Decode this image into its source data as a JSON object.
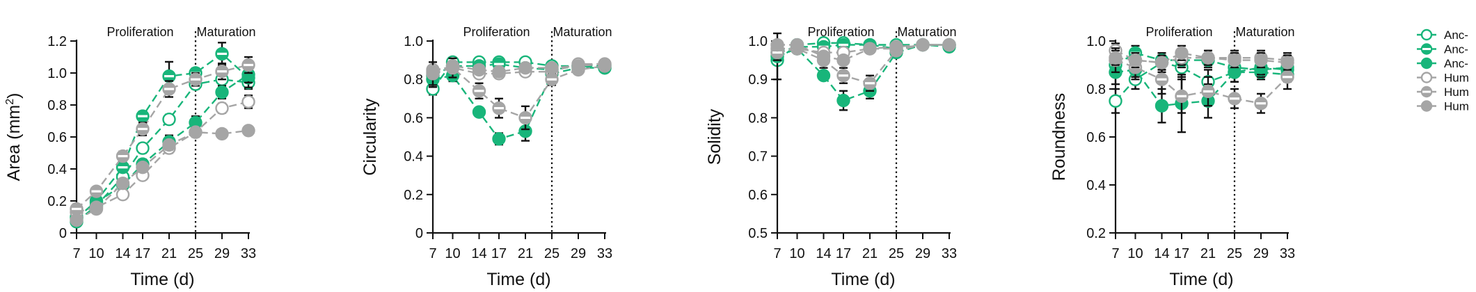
{
  "colors": {
    "green": "#18b57a",
    "gray": "#a5a5a5",
    "axis": "#111111",
    "errorbar": "#111111"
  },
  "legend": {
    "placement": "right",
    "entries": [
      {
        "label": "Anc-",
        "color": "#18b57a",
        "marker": "open"
      },
      {
        "label": "Anc-",
        "color": "#18b57a",
        "marker": "half"
      },
      {
        "label": "Anc-",
        "color": "#18b57a",
        "marker": "filled"
      },
      {
        "label": "Hum",
        "color": "#a5a5a5",
        "marker": "open"
      },
      {
        "label": "Hum",
        "color": "#a5a5a5",
        "marker": "half"
      },
      {
        "label": "Hum",
        "color": "#a5a5a5",
        "marker": "filled"
      }
    ]
  },
  "chart_data": [
    {
      "type": "line",
      "ylabel": "Area (mm",
      "ylabel_sup": "2",
      "ylabel_suffix": ")",
      "xlabel": "Time (d)",
      "x": [
        7,
        10,
        14,
        17,
        21,
        25,
        29,
        33
      ],
      "xticks": [
        "7",
        "10",
        "14",
        "17",
        "21",
        "25",
        "29",
        "33"
      ],
      "ylim": [
        0,
        1.2
      ],
      "yticks": [
        "0",
        "0.2",
        "0.4",
        "0.6",
        "0.8",
        "1.0",
        "1.2"
      ],
      "ytick_values": [
        0,
        0.2,
        0.4,
        0.6,
        0.8,
        1.0,
        1.2
      ],
      "phase_divider_x": 25,
      "phase_labels": {
        "left": "Proliferation",
        "right": "Maturation"
      },
      "series": [
        {
          "color": "#18b57a",
          "marker": "open",
          "values": [
            0.07,
            0.17,
            0.35,
            0.53,
            0.71,
            0.93,
            0.96,
            0.94
          ],
          "err": [
            0.01,
            0.01,
            0.02,
            0.03,
            0.03,
            0.03,
            0.04,
            0.04
          ]
        },
        {
          "color": "#18b57a",
          "marker": "half",
          "values": [
            0.09,
            0.2,
            0.41,
            0.73,
            0.98,
            1.0,
            1.12,
            0.97
          ],
          "err": [
            0.01,
            0.02,
            0.02,
            0.03,
            0.09,
            0.03,
            0.07,
            0.06
          ]
        },
        {
          "color": "#18b57a",
          "marker": "filled",
          "values": [
            0.1,
            0.19,
            0.3,
            0.43,
            0.57,
            0.69,
            0.88,
            0.99
          ],
          "err": [
            0.01,
            0.01,
            0.02,
            0.03,
            0.04,
            0.04,
            0.04,
            0.05
          ]
        },
        {
          "color": "#a5a5a5",
          "marker": "open",
          "values": [
            0.13,
            0.16,
            0.24,
            0.36,
            0.53,
            0.63,
            0.78,
            0.82
          ],
          "err": [
            0.01,
            0.01,
            0.02,
            0.02,
            0.03,
            0.03,
            0.03,
            0.04
          ]
        },
        {
          "color": "#a5a5a5",
          "marker": "half",
          "values": [
            0.15,
            0.26,
            0.48,
            0.65,
            0.9,
            0.96,
            1.01,
            1.05
          ],
          "err": [
            0.02,
            0.02,
            0.03,
            0.04,
            0.05,
            0.04,
            0.05,
            0.05
          ]
        },
        {
          "color": "#a5a5a5",
          "marker": "filled",
          "values": [
            0.08,
            0.15,
            0.31,
            0.41,
            0.55,
            0.63,
            0.62,
            0.64
          ],
          "err": [
            0.01,
            0.01,
            0.02,
            0.02,
            0.03,
            0.02,
            0.02,
            0.02
          ]
        }
      ]
    },
    {
      "type": "line",
      "ylabel": "Circularity",
      "xlabel": "Time (d)",
      "x": [
        7,
        10,
        14,
        17,
        21,
        25,
        29,
        33
      ],
      "xticks": [
        "7",
        "10",
        "14",
        "17",
        "21",
        "25",
        "29",
        "33"
      ],
      "ylim": [
        0,
        1.0
      ],
      "yticks": [
        "0",
        "0.2",
        "0.4",
        "0.6",
        "0.8",
        "1.0"
      ],
      "ytick_values": [
        0,
        0.2,
        0.4,
        0.6,
        0.8,
        1.0
      ],
      "phase_divider_x": 25,
      "phase_labels": {
        "left": "Proliferation",
        "right": "Maturation"
      },
      "series": [
        {
          "color": "#18b57a",
          "marker": "open",
          "values": [
            0.75,
            0.89,
            0.89,
            0.89,
            0.89,
            0.87,
            0.87,
            0.87
          ],
          "err": [
            0.03,
            0.02,
            0.02,
            0.02,
            0.02,
            0.02,
            0.02,
            0.02
          ]
        },
        {
          "color": "#18b57a",
          "marker": "half",
          "values": [
            0.82,
            0.87,
            0.87,
            0.88,
            0.86,
            0.85,
            0.87,
            0.86
          ],
          "err": [
            0.03,
            0.02,
            0.02,
            0.02,
            0.02,
            0.02,
            0.02,
            0.02
          ]
        },
        {
          "color": "#18b57a",
          "marker": "filled",
          "values": [
            0.8,
            0.82,
            0.63,
            0.49,
            0.53,
            0.83,
            0.86,
            0.86
          ],
          "err": [
            0.04,
            0.03,
            0.02,
            0.03,
            0.05,
            0.03,
            0.02,
            0.02
          ]
        },
        {
          "color": "#a5a5a5",
          "marker": "open",
          "values": [
            0.85,
            0.86,
            0.83,
            0.83,
            0.84,
            0.84,
            0.88,
            0.88
          ],
          "err": [
            0.02,
            0.02,
            0.02,
            0.02,
            0.02,
            0.02,
            0.02,
            0.02
          ]
        },
        {
          "color": "#a5a5a5",
          "marker": "half",
          "values": [
            0.83,
            0.86,
            0.74,
            0.65,
            0.6,
            0.8,
            0.85,
            0.87
          ],
          "err": [
            0.06,
            0.05,
            0.04,
            0.05,
            0.06,
            0.03,
            0.02,
            0.02
          ]
        },
        {
          "color": "#a5a5a5",
          "marker": "filled",
          "values": [
            0.84,
            0.87,
            0.85,
            0.84,
            0.86,
            0.86,
            0.87,
            0.88
          ],
          "err": [
            0.02,
            0.02,
            0.02,
            0.02,
            0.02,
            0.02,
            0.02,
            0.02
          ]
        }
      ]
    },
    {
      "type": "line",
      "ylabel": "Solidity",
      "xlabel": "Time (d)",
      "x": [
        7,
        10,
        14,
        17,
        21,
        25,
        29,
        33
      ],
      "xticks": [
        "7",
        "10",
        "14",
        "17",
        "21",
        "25",
        "29",
        "33"
      ],
      "ylim": [
        0.5,
        1.0
      ],
      "yticks": [
        "0.5",
        "0.6",
        "0.7",
        "0.8",
        "0.9",
        "1.0"
      ],
      "ytick_values": [
        0.5,
        0.6,
        0.7,
        0.8,
        0.9,
        1.0
      ],
      "phase_divider_x": 25,
      "phase_labels": {
        "left": "Proliferation",
        "right": "Maturation"
      },
      "series": [
        {
          "color": "#18b57a",
          "marker": "open",
          "values": [
            0.95,
            0.99,
            0.995,
            0.995,
            0.99,
            0.99,
            0.99,
            0.99
          ],
          "err": [
            0.01,
            0.005,
            0.005,
            0.005,
            0.005,
            0.005,
            0.005,
            0.005
          ]
        },
        {
          "color": "#18b57a",
          "marker": "half",
          "values": [
            0.97,
            0.985,
            0.985,
            0.99,
            0.99,
            0.98,
            0.99,
            0.99
          ],
          "err": [
            0.01,
            0.005,
            0.005,
            0.005,
            0.005,
            0.005,
            0.005,
            0.005
          ]
        },
        {
          "color": "#18b57a",
          "marker": "filled",
          "values": [
            0.96,
            0.98,
            0.91,
            0.845,
            0.87,
            0.97,
            0.99,
            0.985
          ],
          "err": [
            0.06,
            0.01,
            0.01,
            0.025,
            0.02,
            0.01,
            0.005,
            0.005
          ]
        },
        {
          "color": "#a5a5a5",
          "marker": "open",
          "values": [
            0.98,
            0.98,
            0.97,
            0.97,
            0.98,
            0.98,
            0.99,
            0.99
          ],
          "err": [
            0.005,
            0.005,
            0.005,
            0.005,
            0.005,
            0.005,
            0.005,
            0.005
          ]
        },
        {
          "color": "#a5a5a5",
          "marker": "half",
          "values": [
            0.97,
            0.98,
            0.95,
            0.91,
            0.89,
            0.975,
            0.99,
            0.99
          ],
          "err": [
            0.02,
            0.01,
            0.02,
            0.02,
            0.02,
            0.01,
            0.005,
            0.005
          ]
        },
        {
          "color": "#a5a5a5",
          "marker": "filled",
          "values": [
            0.99,
            0.99,
            0.96,
            0.95,
            0.98,
            0.985,
            0.99,
            0.99
          ],
          "err": [
            0.005,
            0.005,
            0.01,
            0.01,
            0.005,
            0.005,
            0.005,
            0.005
          ]
        }
      ]
    },
    {
      "type": "line",
      "ylabel": "Roundness",
      "xlabel": "Time (d)",
      "x": [
        7,
        10,
        14,
        17,
        21,
        25,
        29,
        33
      ],
      "xticks": [
        "7",
        "10",
        "14",
        "17",
        "21",
        "25",
        "29",
        "33"
      ],
      "ylim": [
        0.2,
        1.0
      ],
      "yticks": [
        "0.2",
        "0.4",
        "0.6",
        "0.8",
        "1.0"
      ],
      "ytick_values": [
        0.2,
        0.4,
        0.6,
        0.8,
        1.0
      ],
      "phase_divider_x": 25,
      "phase_labels": {
        "left": "Proliferation",
        "right": "Maturation"
      },
      "series": [
        {
          "color": "#18b57a",
          "marker": "open",
          "values": [
            0.75,
            0.84,
            0.91,
            0.89,
            0.83,
            0.87,
            0.87,
            0.86
          ],
          "err": [
            0.05,
            0.04,
            0.04,
            0.04,
            0.05,
            0.04,
            0.03,
            0.03
          ]
        },
        {
          "color": "#18b57a",
          "marker": "half",
          "values": [
            0.9,
            0.95,
            0.92,
            0.92,
            0.92,
            0.89,
            0.88,
            0.89
          ],
          "err": [
            0.04,
            0.03,
            0.03,
            0.03,
            0.03,
            0.03,
            0.03,
            0.03
          ]
        },
        {
          "color": "#18b57a",
          "marker": "filled",
          "values": [
            0.87,
            0.88,
            0.73,
            0.74,
            0.75,
            0.87,
            0.89,
            0.88
          ],
          "err": [
            0.05,
            0.04,
            0.07,
            0.12,
            0.07,
            0.04,
            0.03,
            0.03
          ]
        },
        {
          "color": "#a5a5a5",
          "marker": "open",
          "values": [
            0.96,
            0.92,
            0.91,
            0.93,
            0.93,
            0.93,
            0.93,
            0.92
          ],
          "err": [
            0.03,
            0.03,
            0.03,
            0.03,
            0.03,
            0.03,
            0.03,
            0.03
          ]
        },
        {
          "color": "#a5a5a5",
          "marker": "half",
          "values": [
            0.92,
            0.89,
            0.84,
            0.77,
            0.79,
            0.76,
            0.74,
            0.85
          ],
          "err": [
            0.05,
            0.04,
            0.06,
            0.07,
            0.06,
            0.04,
            0.04,
            0.05
          ]
        },
        {
          "color": "#a5a5a5",
          "marker": "filled",
          "values": [
            0.93,
            0.92,
            0.91,
            0.95,
            0.93,
            0.92,
            0.92,
            0.91
          ],
          "err": [
            0.03,
            0.03,
            0.03,
            0.03,
            0.03,
            0.03,
            0.03,
            0.03
          ]
        }
      ]
    }
  ]
}
